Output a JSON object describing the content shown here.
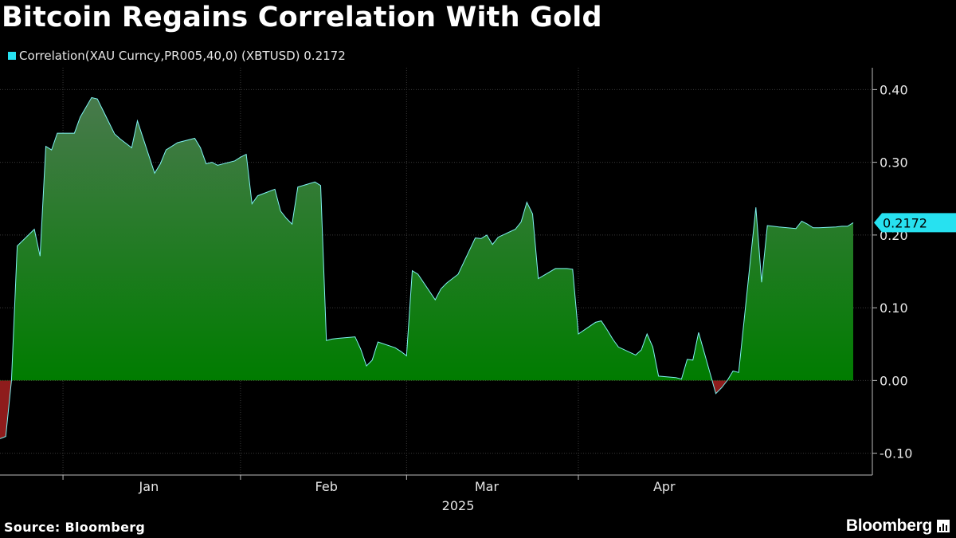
{
  "title": "Bitcoin Regains Correlation With Gold",
  "legend": {
    "label": "Correlation(XAU Curncy,PR005,40,0) (XBTUSD) 0.2172",
    "color": "#27e1f0"
  },
  "source": "Source: Bloomberg",
  "brand": "Bloomberg",
  "brand_icon": "bar-chart-icon",
  "colors": {
    "line": "#7ff2f2",
    "positive_fill_top": "#4a7a4e",
    "positive_fill_bottom": "#007c00",
    "negative_fill": "#8e1c1c",
    "grid": "#3a3a3a",
    "label_bg": "#27e1f0"
  },
  "chart_data": {
    "type": "area",
    "title": "Bitcoin Regains Correlation With Gold",
    "series": [
      {
        "name": "Correlation(XAU Curncy,PR005,40,0) (XBTUSD)",
        "last_value": "0.2172",
        "points": [
          [
            "2024-12-10",
            -0.08
          ],
          [
            "2024-12-11",
            -0.077
          ],
          [
            "2024-12-12",
            0.0
          ],
          [
            "2024-12-13",
            0.185
          ],
          [
            "2024-12-16",
            0.208
          ],
          [
            "2024-12-17",
            0.171
          ],
          [
            "2024-12-18",
            0.322
          ],
          [
            "2024-12-19",
            0.317
          ],
          [
            "2024-12-20",
            0.34
          ],
          [
            "2024-12-23",
            0.34
          ],
          [
            "2024-12-24",
            0.362
          ],
          [
            "2024-12-26",
            0.389
          ],
          [
            "2024-12-27",
            0.387
          ],
          [
            "2024-12-30",
            0.339
          ],
          [
            "2024-12-31",
            0.332
          ],
          [
            "2025-01-02",
            0.32
          ],
          [
            "2025-01-03",
            0.357
          ],
          [
            "2025-01-06",
            0.285
          ],
          [
            "2025-01-07",
            0.298
          ],
          [
            "2025-01-08",
            0.317
          ],
          [
            "2025-01-09",
            0.322
          ],
          [
            "2025-01-10",
            0.327
          ],
          [
            "2025-01-13",
            0.333
          ],
          [
            "2025-01-14",
            0.32
          ],
          [
            "2025-01-15",
            0.298
          ],
          [
            "2025-01-16",
            0.3
          ],
          [
            "2025-01-17",
            0.296
          ],
          [
            "2025-01-20",
            0.302
          ],
          [
            "2025-01-21",
            0.307
          ],
          [
            "2025-01-22",
            0.311
          ],
          [
            "2025-01-23",
            0.243
          ],
          [
            "2025-01-24",
            0.254
          ],
          [
            "2025-01-27",
            0.263
          ],
          [
            "2025-01-28",
            0.233
          ],
          [
            "2025-01-29",
            0.223
          ],
          [
            "2025-01-30",
            0.215
          ],
          [
            "2025-01-31",
            0.266
          ],
          [
            "2025-02-03",
            0.273
          ],
          [
            "2025-02-04",
            0.268
          ],
          [
            "2025-02-05",
            0.055
          ],
          [
            "2025-02-06",
            0.057
          ],
          [
            "2025-02-07",
            0.058
          ],
          [
            "2025-02-10",
            0.06
          ],
          [
            "2025-02-11",
            0.043
          ],
          [
            "2025-02-12",
            0.02
          ],
          [
            "2025-02-13",
            0.028
          ],
          [
            "2025-02-14",
            0.053
          ],
          [
            "2025-02-17",
            0.045
          ],
          [
            "2025-02-18",
            0.04
          ],
          [
            "2025-02-19",
            0.034
          ],
          [
            "2025-02-20",
            0.151
          ],
          [
            "2025-02-21",
            0.146
          ],
          [
            "2025-02-24",
            0.111
          ],
          [
            "2025-02-25",
            0.126
          ],
          [
            "2025-02-26",
            0.134
          ],
          [
            "2025-02-27",
            0.14
          ],
          [
            "2025-02-28",
            0.146
          ],
          [
            "2025-03-03",
            0.196
          ],
          [
            "2025-03-04",
            0.195
          ],
          [
            "2025-03-05",
            0.2
          ],
          [
            "2025-03-06",
            0.187
          ],
          [
            "2025-03-07",
            0.197
          ],
          [
            "2025-03-10",
            0.208
          ],
          [
            "2025-03-11",
            0.218
          ],
          [
            "2025-03-12",
            0.245
          ],
          [
            "2025-03-13",
            0.229
          ],
          [
            "2025-03-14",
            0.14
          ],
          [
            "2025-03-17",
            0.154
          ],
          [
            "2025-03-18",
            0.154
          ],
          [
            "2025-03-19",
            0.154
          ],
          [
            "2025-03-20",
            0.153
          ],
          [
            "2025-03-21",
            0.064
          ],
          [
            "2025-03-24",
            0.08
          ],
          [
            "2025-03-25",
            0.082
          ],
          [
            "2025-03-26",
            0.07
          ],
          [
            "2025-03-27",
            0.057
          ],
          [
            "2025-03-28",
            0.046
          ],
          [
            "2025-03-31",
            0.035
          ],
          [
            "2025-04-01",
            0.042
          ],
          [
            "2025-04-02",
            0.064
          ],
          [
            "2025-04-03",
            0.046
          ],
          [
            "2025-04-04",
            0.006
          ],
          [
            "2025-04-07",
            0.004
          ],
          [
            "2025-04-08",
            0.002
          ],
          [
            "2025-04-09",
            0.029
          ],
          [
            "2025-04-10",
            0.028
          ],
          [
            "2025-04-11",
            0.066
          ],
          [
            "2025-04-14",
            -0.018
          ],
          [
            "2025-04-15",
            -0.01
          ],
          [
            "2025-04-16",
            0.0
          ],
          [
            "2025-04-17",
            0.013
          ],
          [
            "2025-04-18",
            0.011
          ],
          [
            "2025-04-21",
            0.238
          ],
          [
            "2025-04-22",
            0.135
          ],
          [
            "2025-04-23",
            0.213
          ],
          [
            "2025-04-24",
            0.212
          ],
          [
            "2025-04-25",
            0.211
          ],
          [
            "2025-04-28",
            0.209
          ],
          [
            "2025-04-29",
            0.219
          ],
          [
            "2025-04-30",
            0.215
          ],
          [
            "2025-05-01",
            0.21
          ],
          [
            "2025-05-02",
            0.21
          ],
          [
            "2025-05-05",
            0.211
          ],
          [
            "2025-05-06",
            0.212
          ],
          [
            "2025-05-07",
            0.212
          ],
          [
            "2025-05-08",
            0.217
          ]
        ]
      }
    ],
    "x_axis": {
      "labels": [
        "Jan",
        "Feb",
        "Mar",
        "Apr"
      ],
      "label_dates": [
        "2025-01-05",
        "2025-02-05",
        "2025-03-05",
        "2025-04-05"
      ],
      "divider_dates": [
        "2024-12-21",
        "2025-01-21",
        "2025-02-19",
        "2025-03-21"
      ],
      "year_label": "2025",
      "range": [
        "2024-12-10",
        "2025-05-08"
      ]
    },
    "y_axis": {
      "ticks": [
        "0.40",
        "0.30",
        "0.20",
        "0.10",
        "0.00",
        "-0.10"
      ],
      "tick_values": [
        0.4,
        0.3,
        0.2,
        0.1,
        0.0,
        -0.1
      ],
      "range": [
        -0.13,
        0.43
      ],
      "position": "right"
    },
    "grid": true
  }
}
